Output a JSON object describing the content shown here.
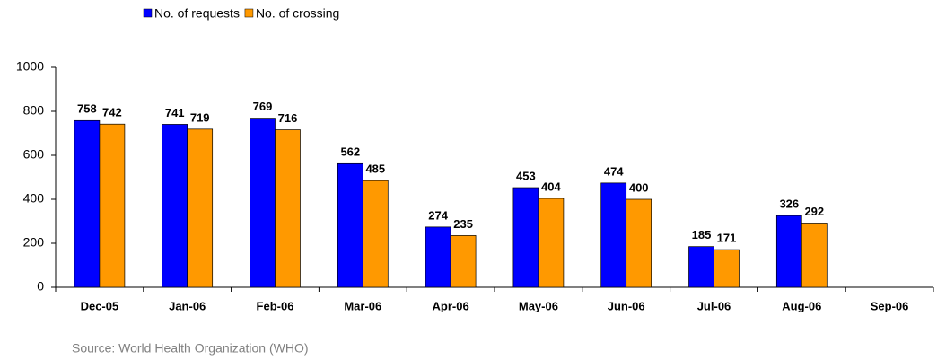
{
  "chart_data": {
    "type": "bar",
    "categories": [
      "Dec-05",
      "Jan-06",
      "Feb-06",
      "Mar-06",
      "Apr-06",
      "May-06",
      "Jun-06",
      "Jul-06",
      "Aug-06",
      "Sep-06"
    ],
    "series": [
      {
        "name": "No. of requests",
        "color": "#0000ff",
        "values": [
          758,
          741,
          769,
          562,
          274,
          453,
          474,
          185,
          326,
          null
        ]
      },
      {
        "name": "No. of crossing",
        "color": "#ff9900",
        "values": [
          742,
          719,
          716,
          485,
          235,
          404,
          400,
          171,
          292,
          null
        ]
      }
    ],
    "ylim": [
      0,
      1000
    ],
    "yticks": [
      0,
      200,
      400,
      600,
      800,
      1000
    ],
    "source": "Source: World Health Organization (WHO)",
    "legend": "top"
  }
}
